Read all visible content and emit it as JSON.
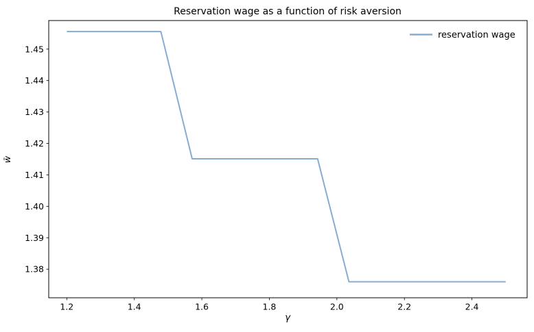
{
  "title": "Reservation wage as a function of risk aversion",
  "axes": {
    "xlabel": "γ",
    "ylabel": "w̄",
    "x_tick_labels": [
      "1.2",
      "1.4",
      "1.6",
      "1.8",
      "2.0",
      "2.2",
      "2.4"
    ],
    "y_tick_labels": [
      "1.38",
      "1.39",
      "1.40",
      "1.41",
      "1.42",
      "1.43",
      "1.44",
      "1.45"
    ]
  },
  "legend": {
    "label": "reservation wage",
    "position": "upper right"
  },
  "colors": {
    "line": "#85add2",
    "spine": "#000000",
    "text": "#000000",
    "background": "#ffffff"
  },
  "chart_data": {
    "type": "line",
    "title": "Reservation wage as a function of risk aversion",
    "xlabel": "γ",
    "ylabel": "w̄",
    "legend_position": "upper right",
    "grid": false,
    "x": [
      1.2,
      1.2929,
      1.3857,
      1.4786,
      1.5714,
      1.6643,
      1.7571,
      1.85,
      1.9429,
      2.0357,
      2.1286,
      2.2214,
      2.3143,
      2.4071,
      2.5
    ],
    "series": [
      {
        "name": "reservation wage",
        "color": "#85add2",
        "values": [
          1.4556,
          1.4556,
          1.4556,
          1.4556,
          1.4151,
          1.4151,
          1.4151,
          1.4151,
          1.4151,
          1.376,
          1.376,
          1.376,
          1.376,
          1.376,
          1.376
        ]
      }
    ],
    "x_ticks": [
      1.2,
      1.4,
      1.6,
      1.8,
      2.0,
      2.2,
      2.4
    ],
    "y_ticks": [
      1.38,
      1.39,
      1.4,
      1.41,
      1.42,
      1.43,
      1.44,
      1.45
    ],
    "xlim": [
      1.1465,
      2.5635
    ],
    "ylim": [
      1.3709,
      1.4591
    ]
  }
}
